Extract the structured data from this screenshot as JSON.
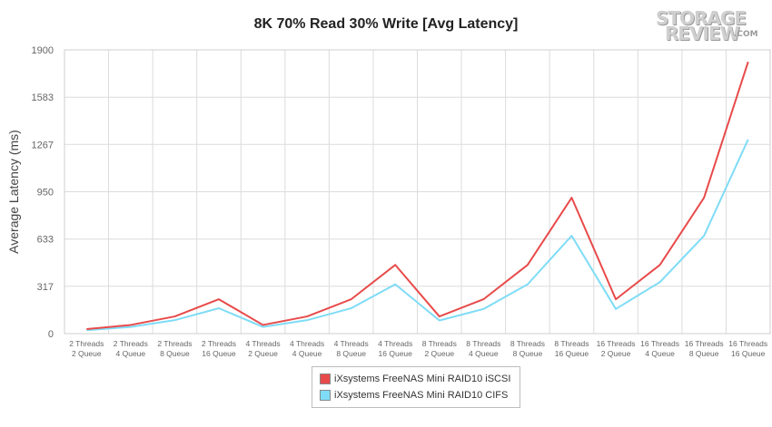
{
  "chart_data": {
    "type": "line",
    "title": "8K 70% Read 30% Write [Avg Latency]",
    "ylabel": "Average Latency (ms)",
    "xlabel": "",
    "ylim": [
      0,
      1900
    ],
    "yticks": [
      "0",
      "317",
      "633",
      "950",
      "1267",
      "1583",
      "1900"
    ],
    "grid": true,
    "legend_position": "bottom",
    "categories": [
      [
        "2 Threads",
        "2 Queue"
      ],
      [
        "2 Threads",
        "4 Queue"
      ],
      [
        "2 Threads",
        "8 Queue"
      ],
      [
        "2 Threads",
        "16 Queue"
      ],
      [
        "4 Threads",
        "2 Queue"
      ],
      [
        "4 Threads",
        "4 Queue"
      ],
      [
        "4 Threads",
        "8 Queue"
      ],
      [
        "4 Threads",
        "16 Queue"
      ],
      [
        "8 Threads",
        "2 Queue"
      ],
      [
        "8 Threads",
        "4 Queue"
      ],
      [
        "8 Threads",
        "8 Queue"
      ],
      [
        "8 Threads",
        "16 Queue"
      ],
      [
        "16 Threads",
        "2 Queue"
      ],
      [
        "16 Threads",
        "4 Queue"
      ],
      [
        "16 Threads",
        "8 Queue"
      ],
      [
        "16 Threads",
        "16 Queue"
      ]
    ],
    "series": [
      {
        "name": "iXsystems FreeNAS Mini RAID10 iSCSI",
        "color": "#e84a4a",
        "values": [
          30,
          58,
          115,
          230,
          58,
          115,
          230,
          460,
          115,
          230,
          460,
          910,
          230,
          460,
          910,
          1820
        ]
      },
      {
        "name": "iXsystems FreeNAS Mini RAID10 CIFS",
        "color": "#7fdcf6",
        "values": [
          23,
          45,
          90,
          170,
          45,
          90,
          170,
          330,
          88,
          165,
          330,
          655,
          165,
          345,
          655,
          1300
        ]
      }
    ]
  },
  "logo": {
    "line1": "STORAGE",
    "line2": "REVIEW",
    "suffix": ".COM"
  }
}
